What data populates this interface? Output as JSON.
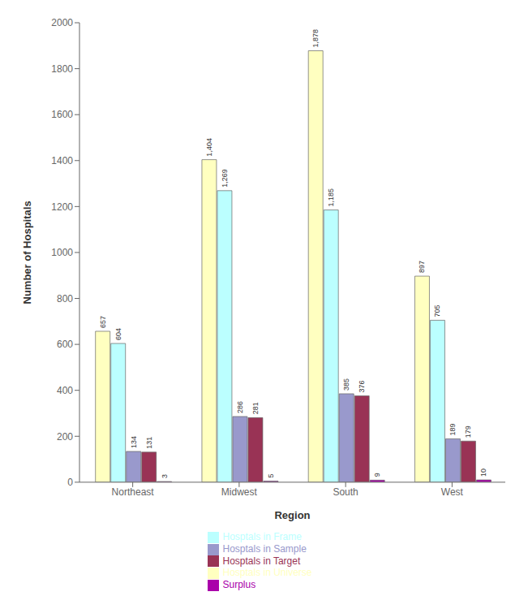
{
  "chart_data": {
    "type": "bar",
    "xlabel": "Region",
    "ylabel": "Number of Hospitals",
    "categories": [
      "Northeast",
      "Midwest",
      "South",
      "West"
    ],
    "series": [
      {
        "name": "Hosptals in Universe",
        "color": "#FFFFC0",
        "values": [
          657,
          1404,
          1878,
          897
        ],
        "value_labels": [
          "657",
          "1,404",
          "1,878",
          "897"
        ]
      },
      {
        "name": "Hosptals in Frame",
        "color": "#BBFFFF",
        "values": [
          604,
          1269,
          1185,
          705
        ],
        "value_labels": [
          "604",
          "1,269",
          "1,185",
          "705"
        ]
      },
      {
        "name": "Hosptals in Sample",
        "color": "#9999CC",
        "values": [
          134,
          286,
          385,
          189
        ]
      },
      {
        "name": "Hosptals in Target",
        "color": "#993355",
        "values": [
          131,
          281,
          376,
          179
        ]
      },
      {
        "name": "Surplus",
        "color": "#AA00AA",
        "values": [
          3,
          5,
          9,
          10
        ]
      }
    ],
    "ylim": [
      0,
      2000
    ],
    "yticks": [
      0,
      200,
      400,
      600,
      800,
      1000,
      1200,
      1400,
      1600,
      1800,
      2000
    ],
    "grid": false,
    "legend": "bottom",
    "data_labels": true
  }
}
